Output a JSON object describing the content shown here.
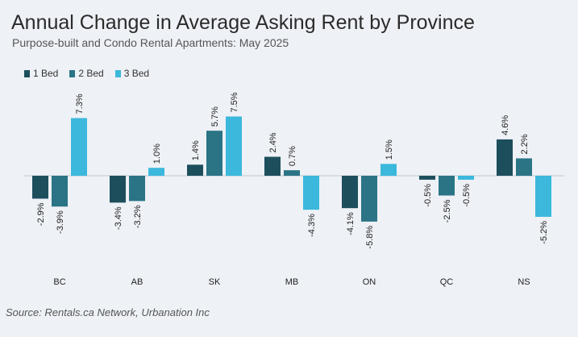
{
  "chart_data": {
    "type": "bar",
    "title": "Annual Change in Average Asking Rent by Province",
    "subtitle": "Purpose-built and Condo Rental Apartments: May 2025",
    "categories": [
      "BC",
      "AB",
      "SK",
      "MB",
      "ON",
      "QC",
      "NS"
    ],
    "series": [
      {
        "name": "1 Bed",
        "color": "#1d4e5c",
        "values": [
          -2.9,
          -3.4,
          1.4,
          2.4,
          -4.1,
          -0.5,
          4.6
        ],
        "labels": [
          "-2.9%",
          "-3.4%",
          "1.4%",
          "2.4%",
          "-4.1%",
          "-0.5%",
          "4.6%"
        ]
      },
      {
        "name": "2 Bed",
        "color": "#2a7486",
        "values": [
          -3.9,
          -3.2,
          5.7,
          0.7,
          -5.8,
          -2.5,
          2.2
        ],
        "labels": [
          "-3.9%",
          "-3.2%",
          "5.7%",
          "0.7%",
          "-5.8%",
          "-2.5%",
          "2.2%"
        ]
      },
      {
        "name": "3 Bed",
        "color": "#3bb8dc",
        "values": [
          7.3,
          1.0,
          7.5,
          -4.3,
          1.5,
          -0.5,
          -5.2
        ],
        "labels": [
          "7.3%",
          "1.0%",
          "7.5%",
          "-4.3%",
          "1.5%",
          "-0.5%",
          "-5.2%"
        ]
      }
    ],
    "legend_position": "top-left",
    "grid": false
  },
  "source": "Source: Rentals.ca Network, Urbanation Inc"
}
